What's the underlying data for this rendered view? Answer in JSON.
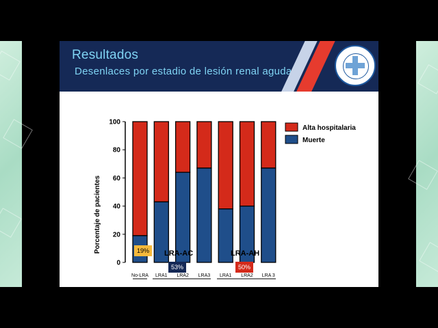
{
  "header": {
    "title": "Resultados",
    "subtitle": "Desenlaces por estadio de lesión renal aguda"
  },
  "chart_data": {
    "type": "bar",
    "stacked": true,
    "ylabel": "Porcentaje de pacientes",
    "ylim": [
      0,
      100
    ],
    "yticks": [
      0,
      20,
      40,
      60,
      80,
      100
    ],
    "categories": [
      "No-LRA",
      "LRA1",
      "LRA2",
      "LRA3",
      "LRA1",
      "LRA2",
      "LRA 3"
    ],
    "series": [
      {
        "name": "Muerte",
        "color": "#1f4e8a",
        "values": [
          19,
          43,
          64,
          67,
          38,
          40,
          67
        ]
      },
      {
        "name": "Alta hospitalaria",
        "color": "#d42a1a",
        "values": [
          81,
          57,
          36,
          33,
          62,
          60,
          33
        ]
      }
    ],
    "legend_position": "right",
    "groups": [
      {
        "label": "LRA-AC",
        "badge": "53%",
        "badge_color": "#152956"
      },
      {
        "label": "LRA-AH",
        "badge": "50%",
        "badge_color": "#d42a1a"
      }
    ],
    "first_badge": {
      "text": "19%",
      "color": "#f6b93b"
    }
  }
}
